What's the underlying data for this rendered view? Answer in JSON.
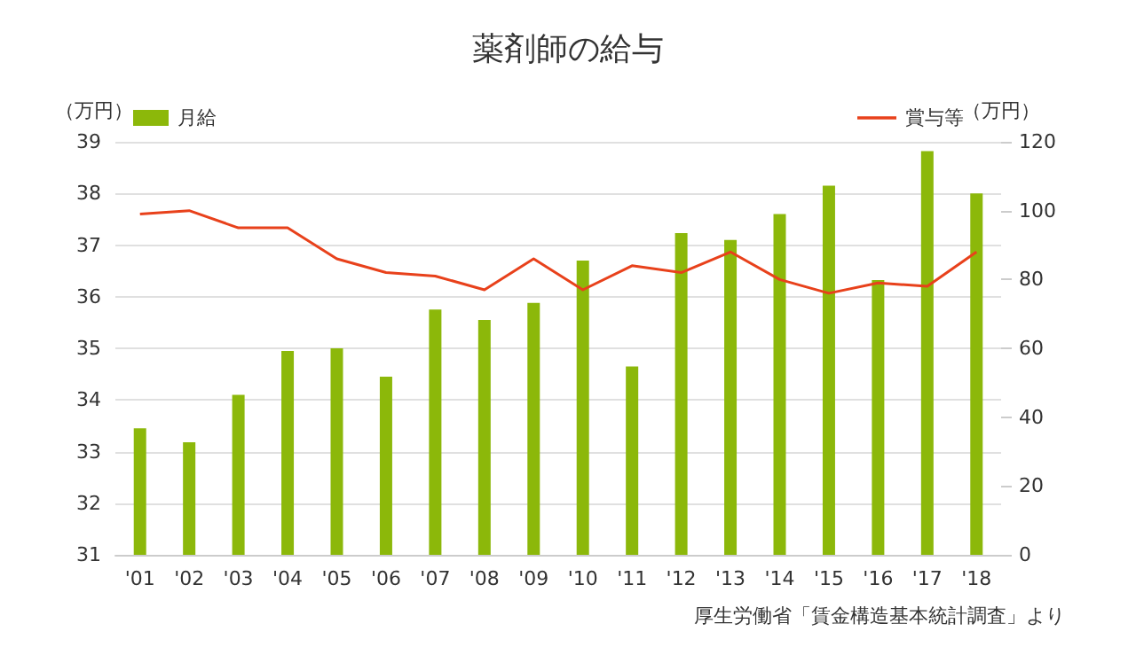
{
  "chart_data": {
    "type": "bar",
    "title": "薬剤師の給与",
    "ylabel": "（万円）",
    "y2label": "（万円）",
    "categories": [
      "'01",
      "'02",
      "'03",
      "'04",
      "'05",
      "'06",
      "'07",
      "'08",
      "'09",
      "'10",
      "'11",
      "'12",
      "'13",
      "'14",
      "'15",
      "'16",
      "'17",
      "'18"
    ],
    "series": [
      {
        "name": "月給",
        "color": "#8cb80a",
        "values": [
          33.45,
          33.18,
          34.1,
          34.95,
          35.0,
          34.45,
          35.75,
          35.55,
          35.88,
          36.7,
          34.65,
          37.23,
          37.1,
          37.6,
          38.15,
          36.32,
          38.82,
          38.0
        ]
      },
      {
        "name": "賞与等",
        "type": "line",
        "axis": "y2",
        "color": "#e8411b",
        "values": [
          99,
          100,
          95,
          95,
          86,
          82,
          81,
          77,
          86,
          77,
          84,
          82,
          88,
          80,
          76,
          79,
          78,
          88
        ]
      }
    ],
    "ylim": [
      31,
      39
    ],
    "yticks": [
      31,
      32,
      33,
      34,
      35,
      36,
      37,
      38,
      39
    ],
    "y2lim": [
      0,
      120
    ],
    "y2ticks": [
      0,
      20,
      40,
      60,
      80,
      100,
      120
    ],
    "grid": "y",
    "legend": "top",
    "marker": "none",
    "annotations": [
      "厚生労働省「賃金構造基本統計調査」より"
    ]
  }
}
